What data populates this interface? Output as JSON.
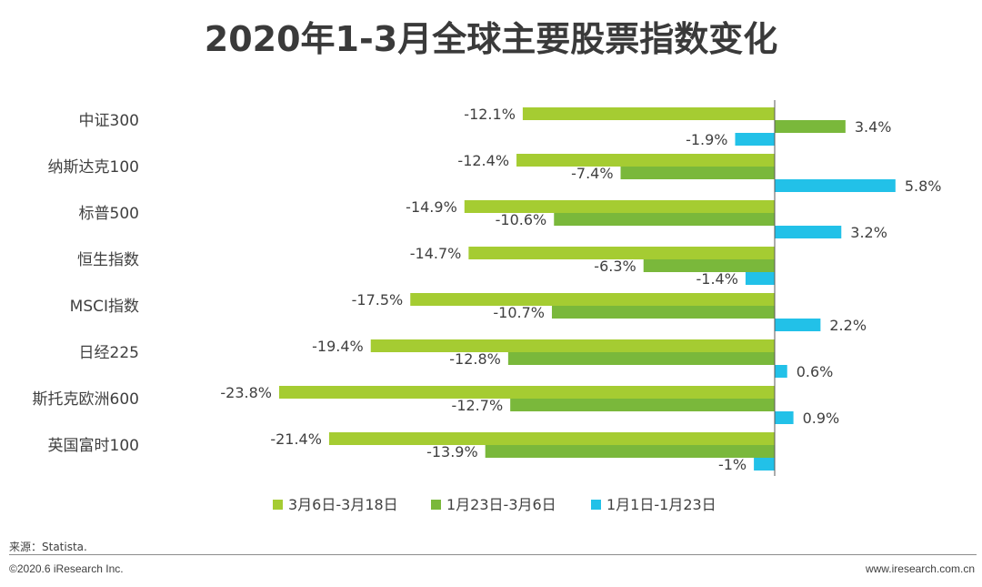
{
  "page": {
    "title": "2020年1-3月全球主要股票指数变化",
    "source": "来源：Statista.",
    "copyright": "©2020.6 iResearch Inc.",
    "website": "www.iresearch.com.cn"
  },
  "chart_data": {
    "type": "bar",
    "orientation": "horizontal",
    "title": "2020年1-3月全球主要股票指数变化",
    "categories": [
      "中证300",
      "纳斯达克100",
      "标普500",
      "恒生指数",
      "MSCI指数",
      "日经225",
      "斯托克欧洲600",
      "英国富时100"
    ],
    "series": [
      {
        "name": "3月6日-3月18日",
        "color": "#a5cc32",
        "values": [
          -12.1,
          -12.4,
          -14.9,
          -14.7,
          -17.5,
          -19.4,
          -23.8,
          -21.4
        ],
        "labels": [
          "-12.1%",
          "-12.4%",
          "-14.9%",
          "-14.7%",
          "-17.5%",
          "-19.4%",
          "-23.8%",
          "-21.4%"
        ]
      },
      {
        "name": "1月23日-3月6日",
        "color": "#7ab83b",
        "values": [
          3.4,
          -7.4,
          -10.6,
          -6.3,
          -10.7,
          -12.8,
          -12.7,
          -13.9
        ],
        "labels": [
          "3.4%",
          "-7.4%",
          "-10.6%",
          "-6.3%",
          "-10.7%",
          "-12.8%",
          "-12.7%",
          "-13.9%"
        ]
      },
      {
        "name": "1月1日-1月23日",
        "color": "#22c1e8",
        "values": [
          -1.9,
          5.8,
          3.2,
          -1.4,
          2.2,
          0.6,
          0.9,
          -1.0
        ],
        "labels": [
          "-1.9%",
          "5.8%",
          "3.2%",
          "-1.4%",
          "2.2%",
          "0.6%",
          "0.9%",
          "-1%"
        ]
      }
    ],
    "unit": "%",
    "legend_position": "bottom",
    "grid": false
  }
}
